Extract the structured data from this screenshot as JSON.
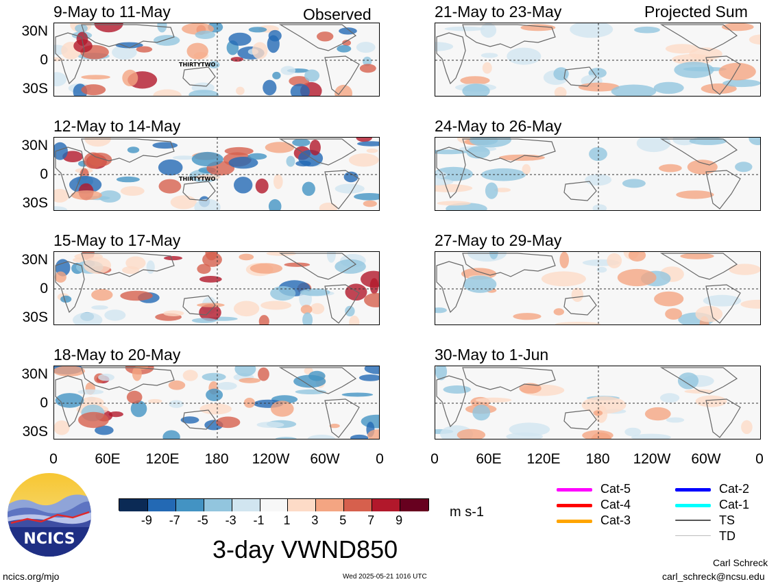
{
  "figure": {
    "title": "3-day VWND850",
    "units": "m s-1",
    "footer_left": "ncics.org/mjo",
    "timestamp": "Wed 2025-05-21 1016 UTC",
    "author": "Carl Schreck",
    "email": "carl_schreck@ncsu.edu",
    "logo_text": "NCICS"
  },
  "columns": {
    "left_tag": "Observed",
    "right_tag": "Projected Sum"
  },
  "panels_left": [
    {
      "title": "9-May to 11-May",
      "storm": "THIRTYTWO"
    },
    {
      "title": "12-May to 14-May",
      "storm": "THIRTYTWO"
    },
    {
      "title": "15-May to 17-May",
      "storm": ""
    },
    {
      "title": "18-May to 20-May",
      "storm": ""
    }
  ],
  "panels_right": [
    {
      "title": "21-May to 23-May"
    },
    {
      "title": "24-May to 26-May"
    },
    {
      "title": "27-May to 29-May"
    },
    {
      "title": "30-May to 1-Jun"
    }
  ],
  "lat_labels": [
    "30N",
    "0",
    "30S"
  ],
  "lon_labels": [
    "0",
    "60E",
    "120E",
    "180",
    "120W",
    "60W",
    "0"
  ],
  "colorbar": {
    "labels": [
      "-9",
      "-7",
      "-5",
      "-3",
      "-1",
      "1",
      "3",
      "5",
      "7",
      "9"
    ],
    "colors": [
      "#0b2a55",
      "#2369b4",
      "#4393c3",
      "#92c5de",
      "#d1e5f0",
      "#f7f7f7",
      "#fddbc7",
      "#f4a582",
      "#d6604d",
      "#b2182b",
      "#67001f"
    ]
  },
  "legend": [
    {
      "label": "Cat-5",
      "color": "#ff00ff"
    },
    {
      "label": "Cat-4",
      "color": "#ff0000"
    },
    {
      "label": "Cat-3",
      "color": "#ffa500"
    },
    {
      "label": "Cat-2",
      "color": "#0000ff"
    },
    {
      "label": "Cat-1",
      "color": "#00ffff"
    },
    {
      "label": "TS",
      "color": "#555555"
    },
    {
      "label": "TD",
      "color": "#bbbbbb"
    }
  ]
}
